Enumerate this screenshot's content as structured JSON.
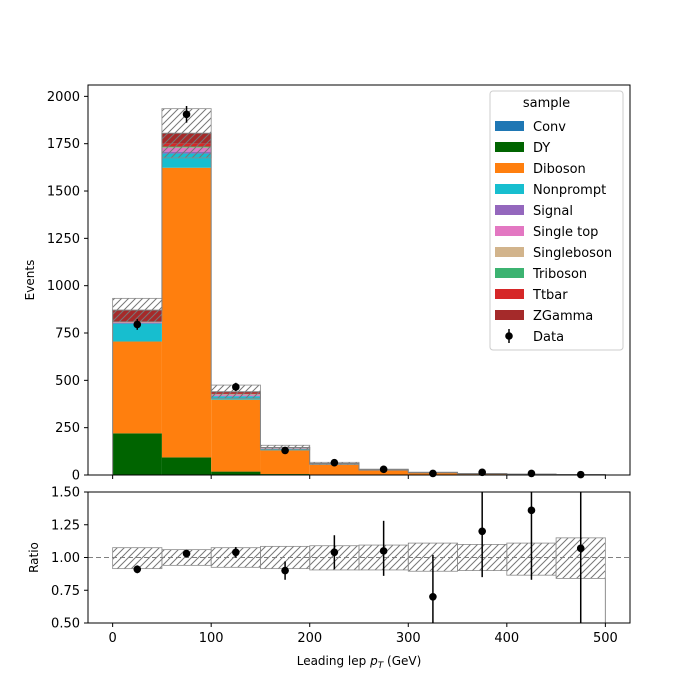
{
  "chart_data": [
    {
      "type": "bar",
      "stacked": true,
      "ylabel": "Events",
      "xlim": [
        -25,
        525
      ],
      "ylim": [
        0,
        2060
      ],
      "y_ticks": [
        "0",
        "250",
        "500",
        "750",
        "1000",
        "1250",
        "1500",
        "1750",
        "2000"
      ],
      "y_tick_values": [
        0,
        250,
        500,
        750,
        1000,
        1250,
        1500,
        1750,
        2000
      ],
      "bin_edges": [
        0,
        50,
        100,
        150,
        200,
        250,
        300,
        350,
        400,
        450,
        500
      ],
      "series": [
        {
          "name": "Conv",
          "color": "#1f77b4",
          "values": [
            0,
            0,
            0,
            0,
            0,
            0,
            0,
            0,
            0,
            0
          ]
        },
        {
          "name": "DY",
          "color": "#006400",
          "values": [
            220,
            93,
            18,
            5,
            2,
            1,
            0,
            0,
            0,
            0
          ]
        },
        {
          "name": "Diboson",
          "color": "#ff7f0e",
          "values": [
            485,
            1530,
            380,
            125,
            55,
            25,
            12,
            7,
            4,
            2
          ]
        },
        {
          "name": "Nonprompt",
          "color": "#17becf",
          "values": [
            95,
            75,
            18,
            8,
            3,
            2,
            1,
            0,
            0,
            0
          ]
        },
        {
          "name": "Signal",
          "color": "#9467bd",
          "values": [
            3,
            10,
            3,
            1,
            0,
            0,
            0,
            0,
            0,
            0
          ]
        },
        {
          "name": "Single top",
          "color": "#e377c2",
          "values": [
            2,
            20,
            5,
            2,
            1,
            0,
            0,
            0,
            0,
            0
          ]
        },
        {
          "name": "Singleboson",
          "color": "#d2b48c",
          "values": [
            1,
            2,
            1,
            0,
            0,
            0,
            0,
            0,
            0,
            0
          ]
        },
        {
          "name": "Triboson",
          "color": "#3cb371",
          "values": [
            1,
            5,
            2,
            1,
            0,
            0,
            0,
            0,
            0,
            0
          ]
        },
        {
          "name": "Ttbar",
          "color": "#d62728",
          "values": [
            2,
            15,
            3,
            1,
            0,
            0,
            0,
            0,
            0,
            0
          ]
        },
        {
          "name": "ZGamma",
          "color": "#a52a2a",
          "values": [
            62,
            55,
            10,
            2,
            0,
            0,
            0,
            0,
            0,
            0
          ]
        }
      ],
      "uncertainty": [
        62,
        130,
        35,
        12,
        6,
        3,
        2,
        1,
        1,
        1
      ],
      "data": {
        "name": "Data",
        "x": [
          25,
          75,
          125,
          175,
          225,
          275,
          325,
          375,
          425,
          475
        ],
        "y": [
          795,
          1905,
          465,
          130,
          65,
          30,
          8,
          14,
          8,
          2
        ],
        "yerr": [
          28,
          44,
          22,
          11,
          8,
          5.5,
          2.8,
          3.7,
          2.8,
          1.4
        ]
      },
      "legend": {
        "title": "sample",
        "placement": "top-right"
      }
    },
    {
      "type": "scatter",
      "xlabel": "Leading lep p_T (GeV)",
      "ylabel": "Ratio",
      "xlim": [
        -25,
        525
      ],
      "ylim": [
        0.5,
        1.5
      ],
      "x_ticks": [
        "0",
        "100",
        "200",
        "300",
        "400",
        "500"
      ],
      "x_tick_values": [
        0,
        100,
        200,
        300,
        400,
        500
      ],
      "y_ticks": [
        "0.50",
        "0.75",
        "1.00",
        "1.25",
        "1.50"
      ],
      "y_tick_values": [
        0.5,
        0.75,
        1.0,
        1.25,
        1.5
      ],
      "reference_line": 1.0,
      "bin_edges": [
        0,
        50,
        100,
        150,
        200,
        250,
        300,
        350,
        400,
        450,
        500
      ],
      "band_low": [
        0.915,
        0.94,
        0.925,
        0.915,
        0.905,
        0.905,
        0.895,
        0.9,
        0.865,
        0.84
      ],
      "band_high": [
        1.075,
        1.06,
        1.075,
        1.085,
        1.09,
        1.095,
        1.11,
        1.1,
        1.11,
        1.15
      ],
      "x": [
        25,
        75,
        125,
        175,
        225,
        275,
        325,
        375,
        425,
        475
      ],
      "y": [
        0.91,
        1.03,
        1.04,
        0.9,
        1.04,
        1.05,
        0.7,
        1.2,
        1.36,
        1.07
      ],
      "yerr_low": [
        0.03,
        0.02,
        0.04,
        0.07,
        0.13,
        0.19,
        0.3,
        0.35,
        0.53,
        0.6
      ],
      "yerr_high": [
        0.03,
        0.02,
        0.04,
        0.07,
        0.13,
        0.23,
        0.32,
        0.35,
        0.53,
        0.6
      ]
    }
  ]
}
